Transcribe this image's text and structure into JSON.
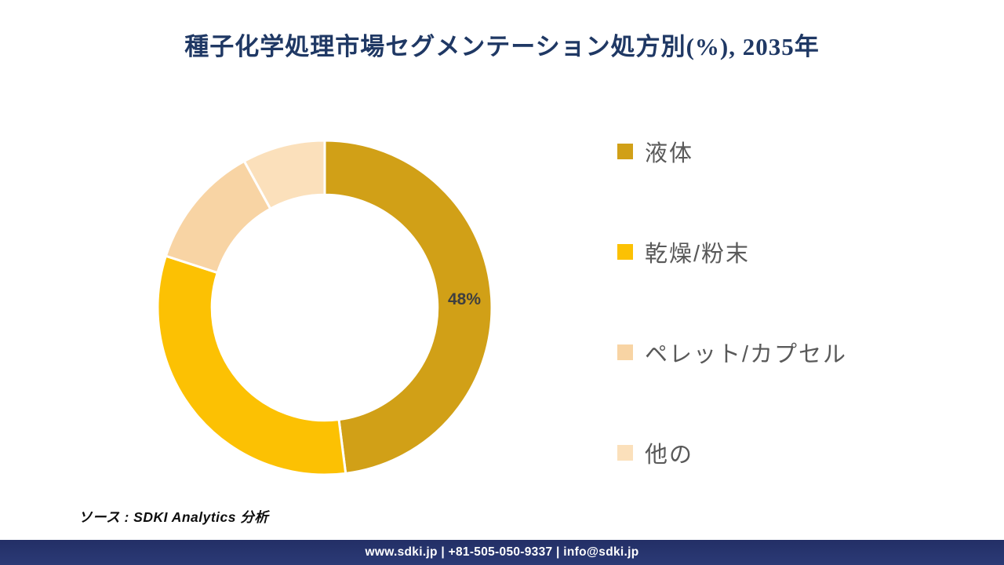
{
  "title": "種子化学処理市場セグメンテーション処方別(%), 2035年",
  "chart_data": {
    "type": "pie",
    "subtype": "donut",
    "title": "種子化学処理市場セグメンテーション処方別(%), 2035年",
    "categories": [
      "液体",
      "乾燥/粉末",
      "ペレット/カプセル",
      "他の"
    ],
    "values": [
      48,
      32,
      12,
      8
    ],
    "unit": "%",
    "colors": [
      "#D1A017",
      "#FCC103",
      "#F8D4A4",
      "#FBE0BB"
    ],
    "data_labels": [
      "48%",
      "",
      "",
      ""
    ],
    "data_label_color": "#3F3F3F",
    "start_angle_deg": 0,
    "direction": "clockwise",
    "inner_radius_ratio": 0.675,
    "segment_divider_color": "#FFFFFF",
    "legend_position": "right",
    "legend_text_color": "#595959"
  },
  "source_line": "ソース : SDKI Analytics 分析",
  "footer": {
    "text": "www.sdki.jp | +81-505-050-9337 | info@sdki.jp",
    "bg_color": "#263268",
    "text_color": "#FFFFFF"
  },
  "theme": {
    "title_color": "#1F3864",
    "background": "#FFFFFF"
  }
}
